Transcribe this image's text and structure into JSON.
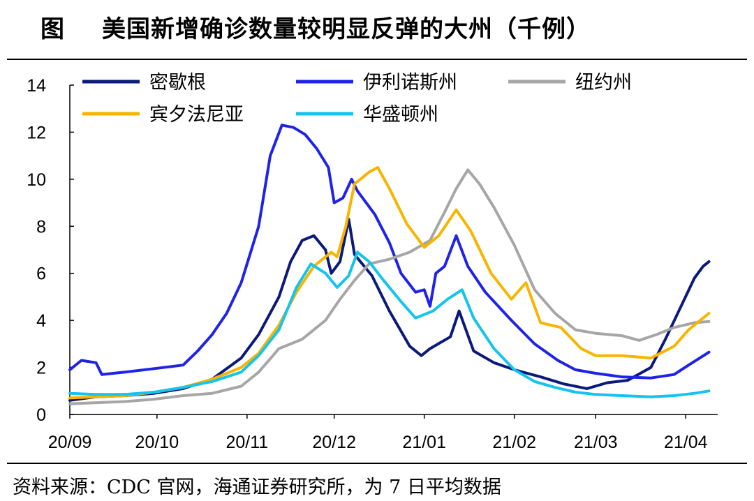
{
  "header": {
    "label": "图",
    "title": "美国新增确诊数量较明显反弹的大州（千例）"
  },
  "footer": {
    "source": "资料来源：CDC 官网，海通证券研究所，为 7 日平均数据"
  },
  "colors": {
    "michigan": "#0b1a7a",
    "illinois": "#1f23e8",
    "newyork": "#a6a6a6",
    "pennsylvania": "#f7b500",
    "washington": "#14c4ee"
  },
  "chart_data": {
    "type": "line",
    "title": "美国新增确诊数量较明显反弹的大州（千例）",
    "xlabel": "",
    "ylabel": "",
    "ylim": [
      0,
      14
    ],
    "yticks": [
      0,
      2,
      4,
      6,
      8,
      10,
      12,
      14
    ],
    "xlim": [
      "2020-09-01",
      "2021-04-12"
    ],
    "xticks": [
      {
        "date": "2020-09-01",
        "label": "20/09"
      },
      {
        "date": "2020-10-01",
        "label": "20/10"
      },
      {
        "date": "2020-11-01",
        "label": "20/11"
      },
      {
        "date": "2020-12-01",
        "label": "20/12"
      },
      {
        "date": "2021-01-01",
        "label": "21/01"
      },
      {
        "date": "2021-02-01",
        "label": "21/02"
      },
      {
        "date": "2021-03-01",
        "label": "21/03"
      },
      {
        "date": "2021-04-01",
        "label": "21/04"
      }
    ],
    "grid": false,
    "legend_position": "top",
    "series": [
      {
        "name": "密歇根",
        "color": "#0b1a7a",
        "points": [
          [
            "2020-09-01",
            0.6
          ],
          [
            "2020-09-10",
            0.75
          ],
          [
            "2020-09-20",
            0.8
          ],
          [
            "2020-09-30",
            0.9
          ],
          [
            "2020-10-10",
            1.1
          ],
          [
            "2020-10-20",
            1.5
          ],
          [
            "2020-10-30",
            2.4
          ],
          [
            "2020-11-05",
            3.4
          ],
          [
            "2020-11-12",
            5.0
          ],
          [
            "2020-11-16",
            6.5
          ],
          [
            "2020-11-20",
            7.4
          ],
          [
            "2020-11-24",
            7.6
          ],
          [
            "2020-11-28",
            7.0
          ],
          [
            "2020-11-30",
            6.0
          ],
          [
            "2020-12-03",
            6.5
          ],
          [
            "2020-12-06",
            8.3
          ],
          [
            "2020-12-08",
            6.8
          ],
          [
            "2020-12-14",
            5.9
          ],
          [
            "2020-12-20",
            4.4
          ],
          [
            "2020-12-27",
            2.9
          ],
          [
            "2020-12-31",
            2.5
          ],
          [
            "2021-01-03",
            2.8
          ],
          [
            "2021-01-10",
            3.3
          ],
          [
            "2021-01-13",
            4.4
          ],
          [
            "2021-01-18",
            2.7
          ],
          [
            "2021-01-25",
            2.2
          ],
          [
            "2021-02-01",
            1.9
          ],
          [
            "2021-02-10",
            1.6
          ],
          [
            "2021-02-18",
            1.3
          ],
          [
            "2021-02-26",
            1.1
          ],
          [
            "2021-03-05",
            1.35
          ],
          [
            "2021-03-12",
            1.45
          ],
          [
            "2021-03-20",
            2.0
          ],
          [
            "2021-03-25",
            3.2
          ],
          [
            "2021-03-30",
            4.5
          ],
          [
            "2021-04-04",
            5.8
          ],
          [
            "2021-04-07",
            6.3
          ],
          [
            "2021-04-09",
            6.5
          ]
        ]
      },
      {
        "name": "伊利诺斯州",
        "color": "#1f23e8",
        "points": [
          [
            "2020-09-01",
            1.9
          ],
          [
            "2020-09-05",
            2.3
          ],
          [
            "2020-09-10",
            2.2
          ],
          [
            "2020-09-12",
            1.7
          ],
          [
            "2020-09-20",
            1.8
          ],
          [
            "2020-09-30",
            1.95
          ],
          [
            "2020-10-10",
            2.1
          ],
          [
            "2020-10-15",
            2.7
          ],
          [
            "2020-10-20",
            3.4
          ],
          [
            "2020-10-25",
            4.3
          ],
          [
            "2020-10-30",
            5.6
          ],
          [
            "2020-11-05",
            8.0
          ],
          [
            "2020-11-09",
            11.0
          ],
          [
            "2020-11-13",
            12.3
          ],
          [
            "2020-11-17",
            12.2
          ],
          [
            "2020-11-21",
            11.9
          ],
          [
            "2020-11-25",
            11.3
          ],
          [
            "2020-11-29",
            10.5
          ],
          [
            "2020-12-01",
            9.0
          ],
          [
            "2020-12-04",
            9.2
          ],
          [
            "2020-12-07",
            10.0
          ],
          [
            "2020-12-09",
            9.5
          ],
          [
            "2020-12-15",
            8.5
          ],
          [
            "2020-12-20",
            7.3
          ],
          [
            "2020-12-24",
            6.0
          ],
          [
            "2020-12-29",
            5.2
          ],
          [
            "2021-01-01",
            5.3
          ],
          [
            "2021-01-03",
            4.6
          ],
          [
            "2021-01-05",
            6.0
          ],
          [
            "2021-01-08",
            6.3
          ],
          [
            "2021-01-12",
            7.6
          ],
          [
            "2021-01-16",
            6.3
          ],
          [
            "2021-01-22",
            5.2
          ],
          [
            "2021-01-31",
            4.0
          ],
          [
            "2021-02-08",
            3.0
          ],
          [
            "2021-02-16",
            2.3
          ],
          [
            "2021-02-22",
            1.9
          ],
          [
            "2021-03-01",
            1.75
          ],
          [
            "2021-03-10",
            1.6
          ],
          [
            "2021-03-20",
            1.55
          ],
          [
            "2021-03-28",
            1.7
          ],
          [
            "2021-04-02",
            2.1
          ],
          [
            "2021-04-09",
            2.65
          ]
        ]
      },
      {
        "name": "纽约州",
        "color": "#a6a6a6",
        "points": [
          [
            "2020-09-01",
            0.45
          ],
          [
            "2020-09-10",
            0.5
          ],
          [
            "2020-09-20",
            0.55
          ],
          [
            "2020-09-30",
            0.65
          ],
          [
            "2020-10-10",
            0.8
          ],
          [
            "2020-10-20",
            0.9
          ],
          [
            "2020-10-30",
            1.2
          ],
          [
            "2020-11-05",
            1.8
          ],
          [
            "2020-11-12",
            2.8
          ],
          [
            "2020-11-20",
            3.2
          ],
          [
            "2020-11-28",
            4.0
          ],
          [
            "2020-12-03",
            4.9
          ],
          [
            "2020-12-08",
            5.7
          ],
          [
            "2020-12-13",
            6.4
          ],
          [
            "2020-12-20",
            6.6
          ],
          [
            "2020-12-27",
            6.9
          ],
          [
            "2021-01-03",
            7.4
          ],
          [
            "2021-01-08",
            8.6
          ],
          [
            "2021-01-12",
            9.6
          ],
          [
            "2021-01-16",
            10.4
          ],
          [
            "2021-01-20",
            9.8
          ],
          [
            "2021-01-25",
            8.8
          ],
          [
            "2021-02-01",
            7.2
          ],
          [
            "2021-02-08",
            5.3
          ],
          [
            "2021-02-15",
            4.3
          ],
          [
            "2021-02-22",
            3.6
          ],
          [
            "2021-03-01",
            3.45
          ],
          [
            "2021-03-10",
            3.35
          ],
          [
            "2021-03-16",
            3.15
          ],
          [
            "2021-03-22",
            3.4
          ],
          [
            "2021-03-28",
            3.7
          ],
          [
            "2021-04-04",
            3.9
          ],
          [
            "2021-04-09",
            3.95
          ]
        ]
      },
      {
        "name": "宾夕法尼亚",
        "color": "#f7b500",
        "points": [
          [
            "2020-09-01",
            0.7
          ],
          [
            "2020-09-10",
            0.75
          ],
          [
            "2020-09-20",
            0.8
          ],
          [
            "2020-09-30",
            0.95
          ],
          [
            "2020-10-10",
            1.15
          ],
          [
            "2020-10-20",
            1.5
          ],
          [
            "2020-10-30",
            2.0
          ],
          [
            "2020-11-05",
            2.6
          ],
          [
            "2020-11-12",
            3.8
          ],
          [
            "2020-11-18",
            5.2
          ],
          [
            "2020-11-24",
            6.3
          ],
          [
            "2020-11-30",
            6.9
          ],
          [
            "2020-12-02",
            6.7
          ],
          [
            "2020-12-05",
            8.0
          ],
          [
            "2020-12-08",
            9.8
          ],
          [
            "2020-12-13",
            10.3
          ],
          [
            "2020-12-16",
            10.5
          ],
          [
            "2020-12-20",
            9.6
          ],
          [
            "2020-12-26",
            8.1
          ],
          [
            "2021-01-01",
            7.1
          ],
          [
            "2021-01-06",
            7.6
          ],
          [
            "2021-01-12",
            8.7
          ],
          [
            "2021-01-17",
            7.8
          ],
          [
            "2021-01-24",
            6.0
          ],
          [
            "2021-01-31",
            4.9
          ],
          [
            "2021-02-05",
            5.6
          ],
          [
            "2021-02-10",
            3.9
          ],
          [
            "2021-02-17",
            3.7
          ],
          [
            "2021-02-24",
            2.8
          ],
          [
            "2021-03-01",
            2.5
          ],
          [
            "2021-03-10",
            2.5
          ],
          [
            "2021-03-20",
            2.4
          ],
          [
            "2021-03-28",
            2.9
          ],
          [
            "2021-04-02",
            3.6
          ],
          [
            "2021-04-06",
            4.0
          ],
          [
            "2021-04-09",
            4.3
          ]
        ]
      },
      {
        "name": "华盛顿州",
        "color": "#14c4ee",
        "points": [
          [
            "2020-09-01",
            0.9
          ],
          [
            "2020-09-10",
            0.85
          ],
          [
            "2020-09-20",
            0.85
          ],
          [
            "2020-09-30",
            0.95
          ],
          [
            "2020-10-10",
            1.15
          ],
          [
            "2020-10-20",
            1.4
          ],
          [
            "2020-10-30",
            1.8
          ],
          [
            "2020-11-05",
            2.5
          ],
          [
            "2020-11-12",
            3.6
          ],
          [
            "2020-11-18",
            5.4
          ],
          [
            "2020-11-23",
            6.4
          ],
          [
            "2020-11-28",
            6.0
          ],
          [
            "2020-12-02",
            5.4
          ],
          [
            "2020-12-06",
            5.9
          ],
          [
            "2020-12-09",
            6.9
          ],
          [
            "2020-12-13",
            6.5
          ],
          [
            "2020-12-18",
            5.7
          ],
          [
            "2020-12-24",
            4.8
          ],
          [
            "2020-12-29",
            4.1
          ],
          [
            "2021-01-04",
            4.4
          ],
          [
            "2021-01-09",
            4.9
          ],
          [
            "2021-01-14",
            5.3
          ],
          [
            "2021-01-18",
            4.1
          ],
          [
            "2021-01-25",
            2.8
          ],
          [
            "2021-02-01",
            1.9
          ],
          [
            "2021-02-08",
            1.4
          ],
          [
            "2021-02-15",
            1.15
          ],
          [
            "2021-02-22",
            0.95
          ],
          [
            "2021-03-01",
            0.85
          ],
          [
            "2021-03-10",
            0.8
          ],
          [
            "2021-03-20",
            0.75
          ],
          [
            "2021-03-28",
            0.8
          ],
          [
            "2021-04-04",
            0.9
          ],
          [
            "2021-04-09",
            1.0
          ]
        ]
      }
    ]
  }
}
